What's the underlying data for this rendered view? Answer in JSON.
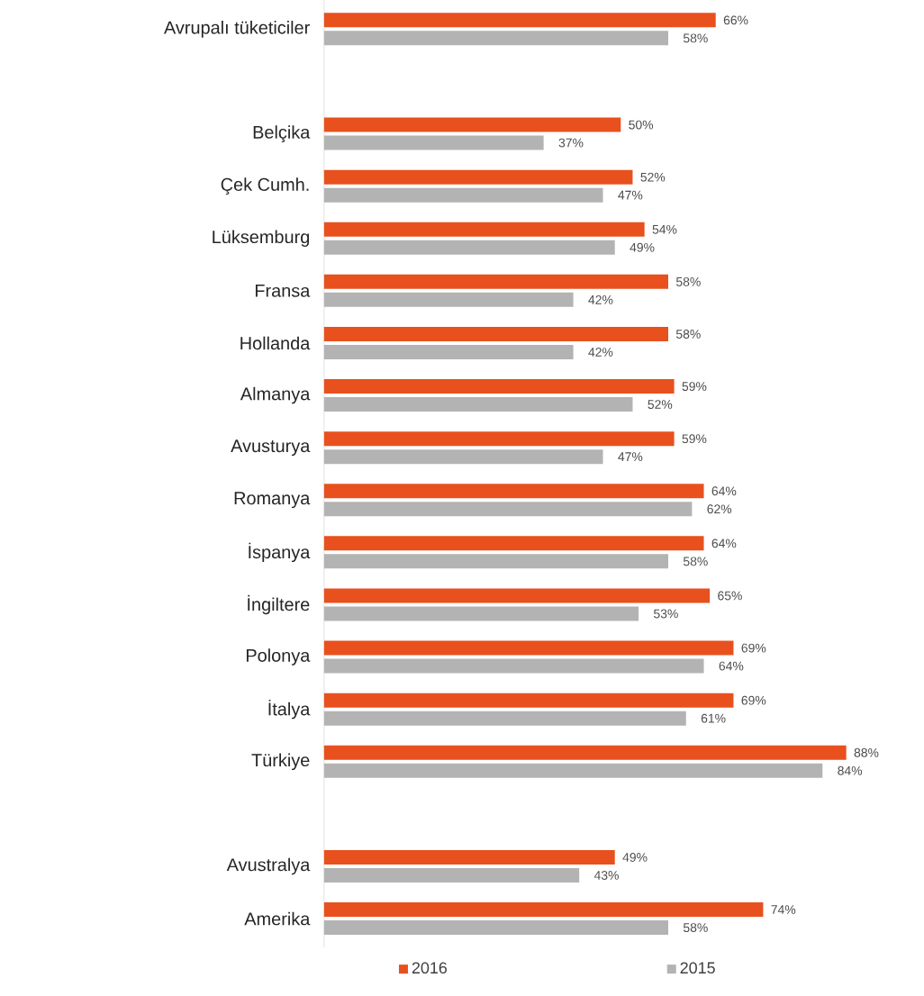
{
  "chart_data": {
    "type": "bar",
    "orientation": "horizontal",
    "categories": [
      "Avrupalı tüketiciler",
      null,
      "Belçika",
      "Çek Cumh.",
      "Lüksemburg",
      "Fransa",
      "Hollanda",
      "Almanya",
      "Avusturya",
      "Romanya",
      "İspanya",
      "İngiltere",
      "Polonya",
      "İtalya",
      "Türkiye",
      null,
      "Avustralya",
      "Amerika"
    ],
    "series": [
      {
        "name": "2016",
        "color": "#e8501e",
        "values": [
          66,
          null,
          50,
          52,
          54,
          58,
          58,
          59,
          59,
          64,
          64,
          65,
          69,
          69,
          88,
          null,
          49,
          74
        ],
        "value_labels": [
          "66%",
          null,
          "50%",
          "52%",
          "54%",
          "58%",
          "58%",
          "59%",
          "59%",
          "64%",
          "64%",
          "65%",
          "69%",
          "69%",
          "88%",
          null,
          "49%",
          "74%"
        ]
      },
      {
        "name": "2015",
        "color": "#b3b3b3",
        "values": [
          58,
          null,
          37,
          47,
          49,
          42,
          42,
          52,
          47,
          62,
          58,
          53,
          64,
          61,
          84,
          null,
          43,
          58
        ],
        "value_labels": [
          "58%",
          null,
          "37%",
          "47%",
          "49%",
          "42%",
          "42%",
          "52%",
          "47%",
          "62%",
          "58%",
          "53%",
          "64%",
          "61%",
          "84%",
          null,
          "43%",
          "58%"
        ]
      }
    ],
    "tick_labels": "y",
    "legend": "bottom"
  }
}
